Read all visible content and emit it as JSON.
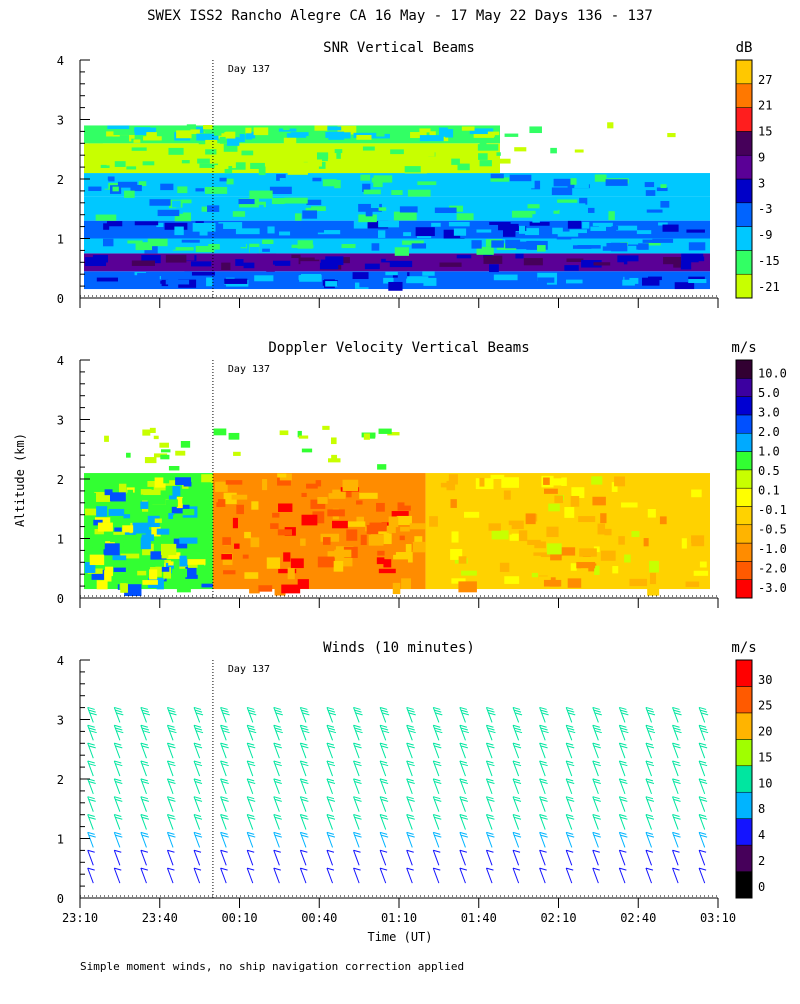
{
  "main_title": "SWEX ISS2 Rancho Alegre CA  16 May - 17 May 22 Days 136 - 137",
  "y_axis_label": "Altitude (km)",
  "x_axis_label": "Time (UT)",
  "footnote": "Simple moment winds, no ship navigation correction applied",
  "day_marker_label": "Day 137",
  "colors": {
    "snr_colorbar": [
      "#c8ff00",
      "#32ff64",
      "#00c8ff",
      "#0064ff",
      "#0000c8",
      "#5a0096",
      "#46005a",
      "#ff1e1e",
      "#ff7800",
      "#ffc800"
    ],
    "velocity_colorbar": [
      "#ff0000",
      "#ff5a00",
      "#ff8c00",
      "#ffb400",
      "#ffd200",
      "#ffff00",
      "#c8ff00",
      "#32ff32",
      "#00aaff",
      "#0050ff",
      "#0000d2",
      "#3c00a0",
      "#320032"
    ],
    "wind_colorbar": [
      "#000000",
      "#46005a",
      "#1414ff",
      "#00b4ff",
      "#00e6a0",
      "#a0ff00",
      "#ffb400",
      "#ff5a00",
      "#ff0000"
    ]
  },
  "chart_data": [
    {
      "type": "heatmap",
      "title": "SNR Vertical Beams",
      "colorbar_unit": "dB",
      "colorbar_ticks": [
        "27",
        "21",
        "15",
        "9",
        "3",
        "-3",
        "-9",
        "-15",
        "-21"
      ],
      "xlim": [
        0,
        240
      ],
      "ylim": [
        0,
        4
      ],
      "x_tick_labels": [
        "23:10",
        "23:40",
        "00:10",
        "00:40",
        "01:10",
        "01:40",
        "02:10",
        "02:40",
        "03:10"
      ],
      "y_tick_labels": [
        "0",
        "1",
        "2",
        "3",
        "4"
      ],
      "xlabel": "",
      "ylabel": "Altitude (km)",
      "day_marker_minutes": 50,
      "data_top_km": 2.1,
      "layers": [
        {
          "from_km": 0.15,
          "to_km": 0.45,
          "dB": -1
        },
        {
          "from_km": 0.45,
          "to_km": 0.75,
          "dB": 7
        },
        {
          "from_km": 0.75,
          "to_km": 1.0,
          "dB": -7
        },
        {
          "from_km": 1.0,
          "to_km": 1.3,
          "dB": -2
        },
        {
          "from_km": 1.3,
          "to_km": 1.7,
          "dB": -9
        },
        {
          "from_km": 1.7,
          "to_km": 2.1,
          "dB": -12
        },
        {
          "from_km": 2.1,
          "to_km": 2.6,
          "dB": -19
        },
        {
          "from_km": 2.6,
          "to_km": 2.9,
          "dB": -16
        }
      ]
    },
    {
      "type": "heatmap",
      "title": "Doppler Velocity Vertical Beams",
      "colorbar_unit": "m/s",
      "colorbar_ticks": [
        "10.0",
        "5.0",
        "3.0",
        "2.0",
        "1.0",
        "0.5",
        "0.1",
        "-0.1",
        "-0.5",
        "-1.0",
        "-2.0",
        "-3.0"
      ],
      "xlim": [
        0,
        240
      ],
      "ylim": [
        0,
        4
      ],
      "x_tick_labels": [
        "23:10",
        "23:40",
        "00:10",
        "00:40",
        "01:10",
        "01:40",
        "02:10",
        "02:40",
        "03:10"
      ],
      "y_tick_labels": [
        "0",
        "1",
        "2",
        "3",
        "4"
      ],
      "xlabel": "",
      "ylabel": "Altitude (km)",
      "day_marker_minutes": 50,
      "data_top_km": 2.1,
      "segments": [
        {
          "from_min": 0,
          "to_min": 50,
          "velocity_ms": 0.7
        },
        {
          "from_min": 50,
          "to_min": 130,
          "velocity_ms": -0.9
        },
        {
          "from_min": 130,
          "to_min": 240,
          "velocity_ms": -0.4
        }
      ]
    },
    {
      "type": "scatter",
      "title": "Winds (10 minutes)",
      "colorbar_unit": "m/s",
      "colorbar_ticks": [
        "30",
        "25",
        "20",
        "15",
        "10",
        "8",
        "4",
        "2",
        "0"
      ],
      "xlim": [
        0,
        240
      ],
      "ylim": [
        0,
        4
      ],
      "x_tick_labels": [
        "23:10",
        "23:40",
        "00:10",
        "00:40",
        "01:10",
        "01:40",
        "02:10",
        "02:40",
        "03:10"
      ],
      "y_tick_labels": [
        "0",
        "1",
        "2",
        "3",
        "4"
      ],
      "xlabel": "Time (UT)",
      "ylabel": "Altitude (km)",
      "day_marker_minutes": 50,
      "profile_minutes": [
        5,
        15,
        25,
        35,
        45,
        55,
        65,
        75,
        85,
        95,
        105,
        115,
        125,
        135,
        145,
        155,
        165,
        175,
        185,
        195,
        205,
        215,
        225,
        235
      ],
      "levels_km": [
        0.25,
        0.55,
        0.85,
        1.15,
        1.45,
        1.75,
        2.05,
        2.35,
        2.65,
        2.95
      ],
      "speeds_ms_by_level": [
        5,
        7,
        9,
        10,
        12,
        11,
        10,
        12,
        14,
        13
      ]
    }
  ]
}
